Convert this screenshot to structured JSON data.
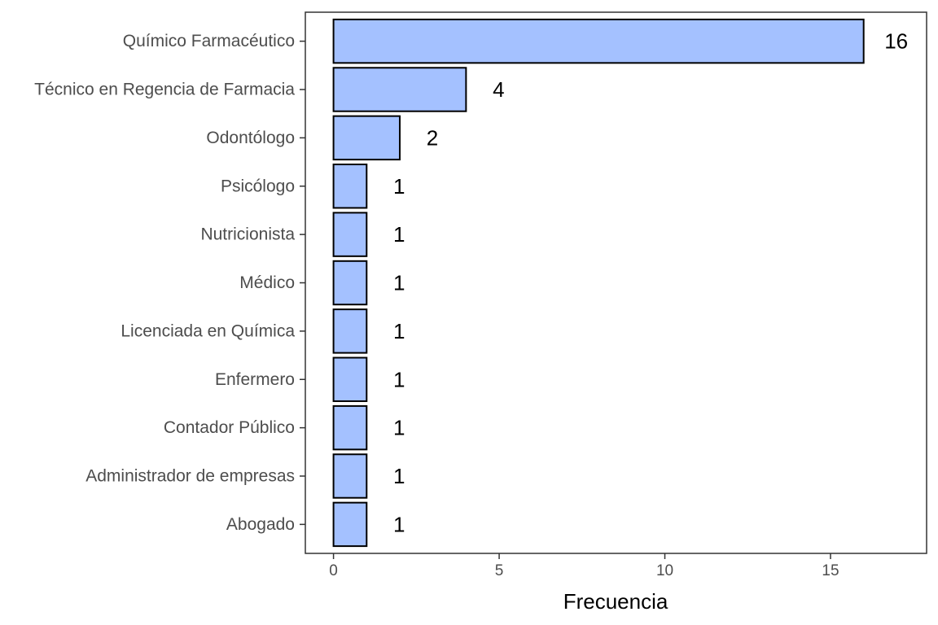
{
  "chart_data": {
    "type": "bar",
    "orientation": "horizontal",
    "categories": [
      "Químico Farmacéutico",
      "Técnico en Regencia de Farmacia",
      "Odontólogo",
      "Psicólogo",
      "Nutricionista",
      "Médico",
      "Licenciada en Química",
      "Enfermero",
      "Contador Público",
      "Administrador de empresas",
      "Abogado"
    ],
    "values": [
      16,
      4,
      2,
      1,
      1,
      1,
      1,
      1,
      1,
      1,
      1
    ],
    "data_labels": [
      "16",
      "4",
      "2",
      "1",
      "1",
      "1",
      "1",
      "1",
      "1",
      "1",
      "1"
    ],
    "xlabel": "Frecuencia",
    "ylabel": "",
    "xlim": [
      -0.85,
      17.9
    ],
    "xticks": [
      0,
      5,
      10,
      15
    ],
    "xtick_labels": [
      "0",
      "5",
      "10",
      "15"
    ],
    "grid": false,
    "bar_color": "#a4c1ff",
    "bar_edge_color": "#000000"
  }
}
